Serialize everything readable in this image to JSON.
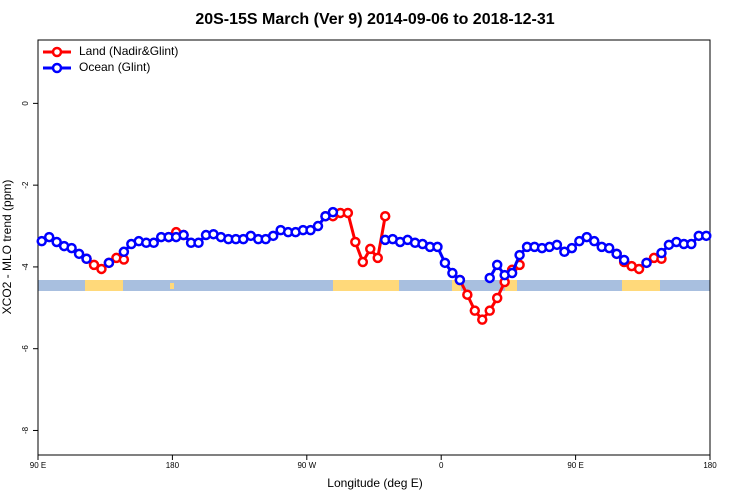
{
  "chart_data": {
    "type": "line",
    "title": "20S-15S March (Ver 9)   2014-09-06 to 2018-12-31",
    "x_label": "Longitude (deg E)",
    "y_label": "XCO2 - MLO trend (ppm)",
    "x": [
      92.5,
      97.5,
      102.5,
      107.5,
      112.5,
      117.5,
      122.5,
      127.5,
      132.5,
      137.5,
      142.5,
      147.5,
      152.5,
      157.5,
      162.5,
      167.5,
      172.5,
      177.5,
      182.5,
      187.5,
      192.5,
      197.5,
      202.5,
      207.5,
      212.5,
      217.5,
      222.5,
      227.5,
      232.5,
      237.5,
      242.5,
      247.5,
      252.5,
      257.5,
      262.5,
      267.5,
      272.5,
      277.5,
      282.5,
      287.5,
      292.5,
      297.5,
      302.5,
      307.5,
      312.5,
      317.5,
      322.5,
      327.5,
      332.5,
      337.5,
      342.5,
      347.5,
      352.5,
      357.5,
      362.5,
      367.5,
      372.5,
      377.5,
      382.5,
      387.5,
      392.5,
      397.5,
      402.5,
      407.5,
      412.5,
      417.5,
      422.5,
      427.5,
      432.5,
      437.5,
      442.5,
      447.5,
      452.5,
      457.5,
      462.5,
      467.5,
      472.5,
      477.5,
      482.5,
      487.5,
      492.5,
      497.5,
      502.5,
      507.5,
      512.5,
      517.5,
      522.5,
      527.5,
      532.5,
      537.5
    ],
    "series": [
      {
        "name": "Land (Nadir&Glint)",
        "color": "#ff0000",
        "values": [
          null,
          null,
          null,
          null,
          null,
          null,
          -3.8,
          -3.95,
          -4.05,
          -3.9,
          -3.78,
          -3.82,
          null,
          null,
          null,
          null,
          null,
          -3.27,
          -3.15,
          -3.22,
          null,
          null,
          null,
          null,
          null,
          null,
          null,
          null,
          null,
          null,
          null,
          null,
          null,
          null,
          null,
          null,
          null,
          null,
          -2.76,
          -2.76,
          -2.68,
          -2.68,
          -3.39,
          -3.88,
          -3.56,
          -3.78,
          -2.76,
          null,
          null,
          null,
          null,
          null,
          null,
          null,
          null,
          null,
          -4.32,
          -4.68,
          -5.07,
          -5.29,
          -5.07,
          -4.76,
          -4.37,
          -4.07,
          -3.95,
          null,
          null,
          null,
          null,
          null,
          null,
          null,
          null,
          null,
          null,
          null,
          null,
          -3.68,
          -3.88,
          -3.98,
          -4.05,
          -3.9,
          -3.78,
          -3.8,
          null,
          null,
          null,
          null,
          null,
          null
        ]
      },
      {
        "name": "Ocean (Glint)",
        "color": "#0000ff",
        "values": [
          -3.37,
          -3.27,
          -3.39,
          -3.49,
          -3.54,
          -3.68,
          -3.8,
          null,
          null,
          -3.9,
          null,
          -3.63,
          -3.44,
          -3.37,
          -3.41,
          -3.41,
          -3.27,
          -3.27,
          -3.27,
          -3.22,
          -3.41,
          -3.41,
          -3.22,
          -3.2,
          -3.27,
          -3.32,
          -3.32,
          -3.32,
          -3.24,
          -3.32,
          -3.32,
          -3.24,
          -3.1,
          -3.15,
          -3.15,
          -3.1,
          -3.1,
          -3.0,
          -2.76,
          -2.66,
          null,
          null,
          null,
          null,
          null,
          null,
          -3.34,
          -3.32,
          -3.39,
          -3.34,
          -3.41,
          -3.44,
          -3.51,
          -3.51,
          -3.9,
          -4.15,
          -4.32,
          null,
          null,
          null,
          -4.27,
          -3.95,
          -4.2,
          -4.15,
          -3.71,
          -3.51,
          -3.51,
          -3.54,
          -3.51,
          -3.46,
          -3.63,
          -3.54,
          -3.37,
          -3.27,
          -3.37,
          -3.51,
          -3.54,
          -3.68,
          -3.83,
          null,
          null,
          -3.9,
          null,
          -3.66,
          -3.46,
          -3.39,
          -3.44,
          -3.44,
          -3.24,
          -3.24
        ]
      }
    ],
    "xlim": [
      90,
      540
    ],
    "xticks": [
      {
        "value": 90,
        "label": "90 E"
      },
      180,
      {
        "value": 270,
        "label": "90 W"
      },
      {
        "value": 360,
        "label": "0"
      },
      {
        "value": 450,
        "label": "90 E"
      },
      {
        "value": 540,
        "label": "180"
      }
    ],
    "ylim": [
      -8.6,
      1.55
    ],
    "yticks": [
      0,
      -2,
      -4,
      -6,
      -8
    ],
    "legend": "top-left"
  }
}
